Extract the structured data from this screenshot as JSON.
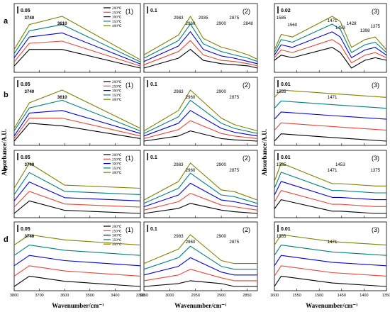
{
  "figure": {
    "ylabel_left": "Absorbance/A.U.",
    "ylabel_right": "Absorbance/A.U.",
    "xlabel": "Wavenumber/cm⁻¹"
  },
  "rows": [
    "a",
    "b",
    "c",
    "d"
  ],
  "columns": [
    {
      "label": "(1)",
      "xticks": [
        "3800",
        "3700",
        "3600",
        "3500",
        "3400",
        "3300"
      ]
    },
    {
      "label": "(2)",
      "xticks": [
        "3050",
        "3000",
        "2950",
        "2900",
        "2850"
      ]
    },
    {
      "label": "(3)",
      "xticks": [
        "1600",
        "1550",
        "1500",
        "1450",
        "1400",
        "1350"
      ]
    }
  ],
  "legend": {
    "entries": [
      "200℃",
      "250℃",
      "300℃",
      "350℃",
      "400℃"
    ],
    "colors": [
      "#000000",
      "#e8463a",
      "#0000dc",
      "#008080",
      "#808000"
    ]
  },
  "chart_data": [
    {
      "type": "line",
      "panel": "a(1)",
      "x": [
        3800,
        3740,
        3610,
        3300
      ],
      "scale_bar": "0.05",
      "annotations": [
        "3740",
        "3610"
      ],
      "series": [
        {
          "name": "200℃",
          "y": [
            0.02,
            0.1,
            0.1,
            0.01
          ]
        },
        {
          "name": "250℃",
          "y": [
            0.04,
            0.13,
            0.14,
            0.02
          ]
        },
        {
          "name": "300℃",
          "y": [
            0.06,
            0.16,
            0.18,
            0.03
          ]
        },
        {
          "name": "350℃",
          "y": [
            0.08,
            0.19,
            0.22,
            0.04
          ]
        },
        {
          "name": "400℃",
          "y": [
            0.1,
            0.22,
            0.26,
            0.05
          ]
        }
      ]
    },
    {
      "type": "line",
      "panel": "a(2)",
      "x": [
        3050,
        2983,
        2960,
        2935,
        2900,
        2875,
        2848,
        2830
      ],
      "scale_bar": "0.1",
      "annotations": [
        "2983",
        "2960",
        "2935",
        "2900",
        "2875",
        "2848"
      ],
      "series": [
        {
          "name": "200℃",
          "y": [
            0.03,
            0.12,
            0.2,
            0.1,
            0.07,
            0.06,
            0.05,
            0.03
          ]
        },
        {
          "name": "250℃",
          "y": [
            0.06,
            0.18,
            0.28,
            0.15,
            0.1,
            0.09,
            0.07,
            0.05
          ]
        },
        {
          "name": "300℃",
          "y": [
            0.09,
            0.23,
            0.36,
            0.2,
            0.14,
            0.12,
            0.09,
            0.07
          ]
        },
        {
          "name": "350℃",
          "y": [
            0.12,
            0.28,
            0.43,
            0.25,
            0.18,
            0.15,
            0.12,
            0.09
          ]
        },
        {
          "name": "400℃",
          "y": [
            0.15,
            0.33,
            0.5,
            0.3,
            0.22,
            0.19,
            0.15,
            0.11
          ]
        }
      ]
    },
    {
      "type": "line",
      "panel": "a(3)",
      "x": [
        1600,
        1585,
        1560,
        1471,
        1453,
        1428,
        1398,
        1375,
        1350
      ],
      "scale_bar": "0.02",
      "annotations": [
        "1585",
        "1560",
        "1471",
        "1453",
        "1428",
        "1398",
        "1375"
      ],
      "series": [
        {
          "name": "200℃",
          "y": [
            0.01,
            0.03,
            0.02,
            0.06,
            0.04,
            -0.02,
            0.01,
            0.02,
            0.01
          ]
        },
        {
          "name": "250℃",
          "y": [
            0.02,
            0.05,
            0.04,
            0.09,
            0.07,
            0.0,
            0.03,
            0.04,
            0.02
          ]
        },
        {
          "name": "300℃",
          "y": [
            0.03,
            0.07,
            0.06,
            0.12,
            0.1,
            0.02,
            0.05,
            0.06,
            0.03
          ]
        },
        {
          "name": "350℃",
          "y": [
            0.04,
            0.09,
            0.08,
            0.15,
            0.13,
            0.04,
            0.07,
            0.08,
            0.04
          ]
        },
        {
          "name": "400℃",
          "y": [
            0.05,
            0.11,
            0.1,
            0.18,
            0.16,
            0.06,
            0.09,
            0.1,
            0.05
          ]
        }
      ]
    },
    {
      "type": "line",
      "panel": "b(1)",
      "x": [
        3800,
        3740,
        3610,
        3300
      ],
      "scale_bar": "0.05",
      "annotations": [
        "3740",
        "3610"
      ],
      "series": [
        {
          "name": "200℃",
          "y": [
            0.01,
            0.08,
            0.07,
            0.02
          ]
        },
        {
          "name": "250℃",
          "y": [
            0.02,
            0.1,
            0.1,
            0.03
          ]
        },
        {
          "name": "300℃",
          "y": [
            0.03,
            0.12,
            0.13,
            0.04
          ]
        },
        {
          "name": "350℃",
          "y": [
            0.05,
            0.14,
            0.17,
            0.05
          ]
        },
        {
          "name": "400℃",
          "y": [
            0.06,
            0.16,
            0.21,
            0.06
          ]
        }
      ]
    },
    {
      "type": "line",
      "panel": "b(2)",
      "x": [
        3050,
        2983,
        2960,
        2900,
        2875,
        2830
      ],
      "scale_bar": "0.1",
      "annotations": [
        "2983",
        "2960",
        "2900",
        "2875"
      ],
      "series": [
        {
          "name": "200℃",
          "y": [
            0.02,
            0.06,
            0.1,
            0.04,
            0.03,
            0.02
          ]
        },
        {
          "name": "250℃",
          "y": [
            0.04,
            0.11,
            0.18,
            0.08,
            0.06,
            0.04
          ]
        },
        {
          "name": "300℃",
          "y": [
            0.06,
            0.16,
            0.26,
            0.12,
            0.09,
            0.06
          ]
        },
        {
          "name": "350℃",
          "y": [
            0.08,
            0.21,
            0.34,
            0.16,
            0.12,
            0.08
          ]
        },
        {
          "name": "400℃",
          "y": [
            0.1,
            0.26,
            0.42,
            0.2,
            0.15,
            0.1
          ]
        }
      ]
    },
    {
      "type": "line",
      "panel": "b(3)",
      "x": [
        1600,
        1585,
        1471,
        1350
      ],
      "scale_bar": "0.01",
      "annotations": [
        "1585",
        "1471"
      ],
      "series": [
        {
          "name": "200℃",
          "y": [
            0.0,
            0.002,
            0.001,
            0.0
          ]
        },
        {
          "name": "250℃",
          "y": [
            0.003,
            0.005,
            0.004,
            0.003
          ]
        },
        {
          "name": "300℃",
          "y": [
            0.006,
            0.008,
            0.007,
            0.006
          ]
        },
        {
          "name": "350℃",
          "y": [
            0.009,
            0.011,
            0.01,
            0.009
          ]
        },
        {
          "name": "400℃",
          "y": [
            0.012,
            0.014,
            0.013,
            0.012
          ]
        }
      ]
    },
    {
      "type": "line",
      "panel": "c(1)",
      "x": [
        3800,
        3740,
        3600,
        3300
      ],
      "scale_bar": "0.05",
      "annotations": [
        "3740"
      ],
      "series": [
        {
          "name": "200℃",
          "y": [
            0.0,
            0.04,
            0.01,
            0.0
          ]
        },
        {
          "name": "250℃",
          "y": [
            0.02,
            0.07,
            0.03,
            0.02
          ]
        },
        {
          "name": "300℃",
          "y": [
            0.04,
            0.1,
            0.05,
            0.04
          ]
        },
        {
          "name": "350℃",
          "y": [
            0.06,
            0.13,
            0.07,
            0.06
          ]
        },
        {
          "name": "400℃",
          "y": [
            0.08,
            0.16,
            0.09,
            0.08
          ]
        }
      ]
    },
    {
      "type": "line",
      "panel": "c(2)",
      "x": [
        3050,
        2983,
        2960,
        2900,
        2875,
        2830
      ],
      "scale_bar": "0.1",
      "annotations": [
        "2983",
        "2960",
        "2900",
        "2875"
      ],
      "series": [
        {
          "name": "200℃",
          "y": [
            0.01,
            0.04,
            0.07,
            0.03,
            0.02,
            0.01
          ]
        },
        {
          "name": "250℃",
          "y": [
            0.03,
            0.08,
            0.13,
            0.06,
            0.05,
            0.03
          ]
        },
        {
          "name": "300℃",
          "y": [
            0.05,
            0.12,
            0.19,
            0.09,
            0.08,
            0.05
          ]
        },
        {
          "name": "350℃",
          "y": [
            0.07,
            0.16,
            0.25,
            0.12,
            0.11,
            0.07
          ]
        },
        {
          "name": "400℃",
          "y": [
            0.09,
            0.2,
            0.31,
            0.15,
            0.14,
            0.09
          ]
        }
      ]
    },
    {
      "type": "line",
      "panel": "c(3)",
      "x": [
        1600,
        1585,
        1471,
        1453,
        1375,
        1350
      ],
      "scale_bar": "0.01",
      "annotations": [
        "1585",
        "1471",
        "1453",
        "1375"
      ],
      "series": [
        {
          "name": "200℃",
          "y": [
            0.002,
            0.006,
            0.001,
            0.001,
            0.0,
            0.0
          ]
        },
        {
          "name": "250℃",
          "y": [
            0.005,
            0.01,
            0.004,
            0.004,
            0.003,
            0.003
          ]
        },
        {
          "name": "300℃",
          "y": [
            0.008,
            0.014,
            0.007,
            0.007,
            0.006,
            0.006
          ]
        },
        {
          "name": "350℃",
          "y": [
            0.011,
            0.018,
            0.01,
            0.01,
            0.009,
            0.009
          ]
        },
        {
          "name": "400℃",
          "y": [
            0.014,
            0.022,
            0.013,
            0.013,
            0.012,
            0.012
          ]
        }
      ]
    },
    {
      "type": "line",
      "panel": "d(1)",
      "x": [
        3800,
        3740,
        3600,
        3300
      ],
      "scale_bar": "0.05",
      "annotations": [
        "3740"
      ],
      "series": [
        {
          "name": "200℃",
          "y": [
            0.0,
            0.02,
            0.01,
            0.0
          ]
        },
        {
          "name": "250℃",
          "y": [
            0.02,
            0.04,
            0.03,
            0.02
          ]
        },
        {
          "name": "300℃",
          "y": [
            0.04,
            0.06,
            0.05,
            0.04
          ]
        },
        {
          "name": "350℃",
          "y": [
            0.06,
            0.08,
            0.07,
            0.06
          ]
        },
        {
          "name": "400℃",
          "y": [
            0.08,
            0.1,
            0.09,
            0.08
          ]
        }
      ]
    },
    {
      "type": "line",
      "panel": "d(2)",
      "x": [
        3050,
        2983,
        2960,
        2900,
        2875,
        2830
      ],
      "scale_bar": "0.1",
      "annotations": [
        "2983",
        "2960",
        "2900",
        "2875"
      ],
      "series": [
        {
          "name": "200℃",
          "y": [
            0.01,
            0.02,
            0.03,
            0.02,
            0.01,
            0.01
          ]
        },
        {
          "name": "250℃",
          "y": [
            0.03,
            0.05,
            0.07,
            0.04,
            0.03,
            0.03
          ]
        },
        {
          "name": "300℃",
          "y": [
            0.05,
            0.08,
            0.11,
            0.06,
            0.05,
            0.05
          ]
        },
        {
          "name": "350℃",
          "y": [
            0.07,
            0.11,
            0.15,
            0.08,
            0.07,
            0.07
          ]
        },
        {
          "name": "400℃",
          "y": [
            0.09,
            0.14,
            0.19,
            0.1,
            0.09,
            0.09
          ]
        }
      ]
    },
    {
      "type": "line",
      "panel": "d(3)",
      "x": [
        1600,
        1585,
        1471,
        1350
      ],
      "scale_bar": "0.01",
      "annotations": [
        "1585",
        "1471"
      ],
      "series": [
        {
          "name": "200℃",
          "y": [
            0.0,
            0.003,
            0.001,
            0.0
          ]
        },
        {
          "name": "250℃",
          "y": [
            0.003,
            0.006,
            0.004,
            0.003
          ]
        },
        {
          "name": "300℃",
          "y": [
            0.006,
            0.009,
            0.007,
            0.006
          ]
        },
        {
          "name": "350℃",
          "y": [
            0.009,
            0.012,
            0.01,
            0.009
          ]
        },
        {
          "name": "400℃",
          "y": [
            0.012,
            0.015,
            0.013,
            0.012
          ]
        }
      ]
    }
  ]
}
